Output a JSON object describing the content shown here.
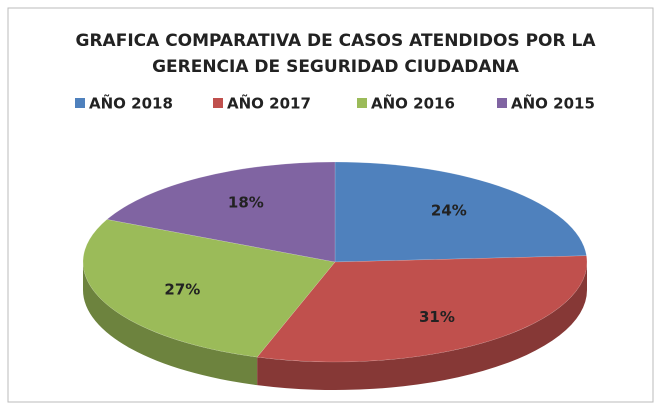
{
  "chart_data": {
    "type": "pie3d",
    "title": "GRAFICA COMPARATIVA DE CASOS ATENDIDOS POR LA GERENCIA DE SEGURIDAD CIUDADANA",
    "categories": [
      "AÑO 2018",
      "AÑO 2017",
      "AÑO 2016",
      "AÑO 2015"
    ],
    "values": [
      24,
      31,
      27,
      18
    ],
    "value_labels": [
      "24%",
      "31%",
      "27%",
      "18%"
    ],
    "colors": [
      "#4f81bd",
      "#c0504d",
      "#9bbb59",
      "#8064a2"
    ],
    "legend": "top"
  }
}
